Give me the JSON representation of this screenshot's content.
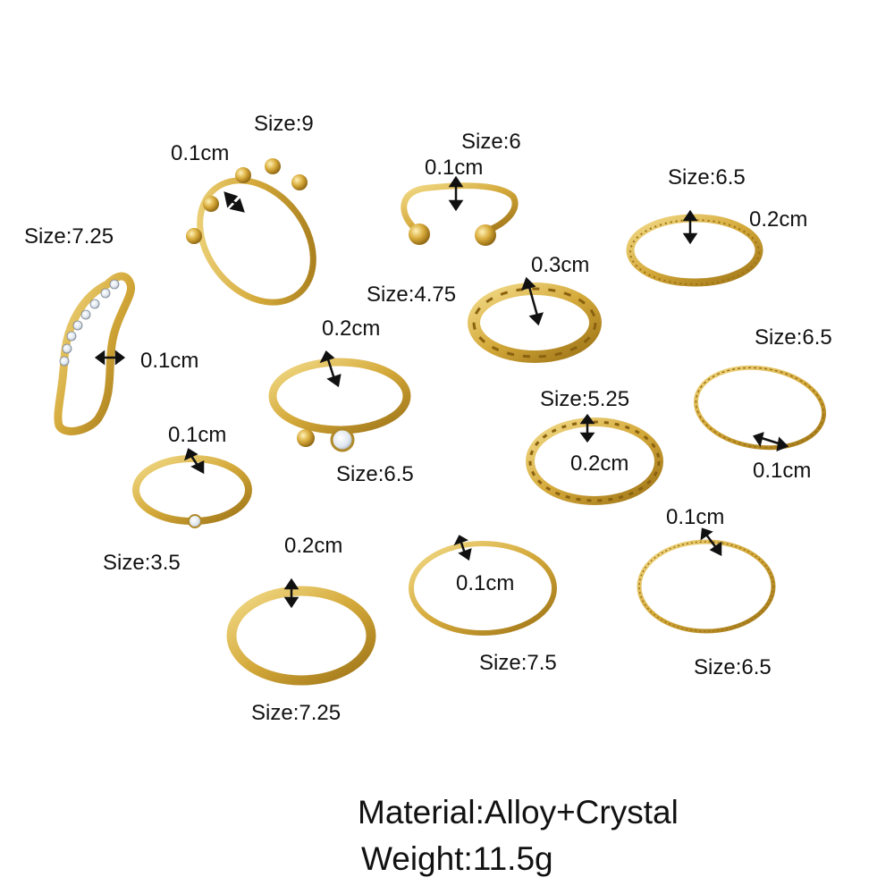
{
  "colors": {
    "gold": "#d4a93a",
    "gold_light": "#f3dc8a",
    "gold_dark": "#9c7216",
    "crystal": "#eef2f7",
    "arrow": "#111111",
    "text": "#111111",
    "background": "#ffffff"
  },
  "icons": {
    "ring": "gold-ring-icon",
    "double_arrow": "double-arrow-icon",
    "crystal": "crystal-stone-icon"
  },
  "rings": [
    {
      "id": "wave",
      "size": "Size:7.25",
      "thickness": "0.1cm"
    },
    {
      "id": "ball-crown",
      "size": "Size:9",
      "thickness": "0.1cm"
    },
    {
      "id": "open-ball",
      "size": "Size:6",
      "thickness": "0.1cm"
    },
    {
      "id": "textured-band",
      "size": "Size:6.5",
      "thickness": "0.2cm"
    },
    {
      "id": "chain-link",
      "size": "Size:4.75",
      "thickness": "0.3cm"
    },
    {
      "id": "ball-crystal",
      "size": "Size:6.5",
      "thickness": "0.2cm"
    },
    {
      "id": "thin-hammered",
      "size": "Size:6.5",
      "thickness": "0.1cm"
    },
    {
      "id": "twisted",
      "size": "Size:5.25",
      "thickness": "0.2cm"
    },
    {
      "id": "crystal-solitaire",
      "size": "Size:3.5",
      "thickness": "0.1cm"
    },
    {
      "id": "hammered-band",
      "size": "Size:7.25",
      "thickness": "0.2cm"
    },
    {
      "id": "plain-thin",
      "size": "Size:7.5",
      "thickness": "0.1cm"
    },
    {
      "id": "dotted-thin",
      "size": "Size:6.5",
      "thickness": "0.1cm"
    }
  ],
  "footer": {
    "material": "Material:Alloy+Crystal",
    "weight": "Weight:11.5g"
  }
}
